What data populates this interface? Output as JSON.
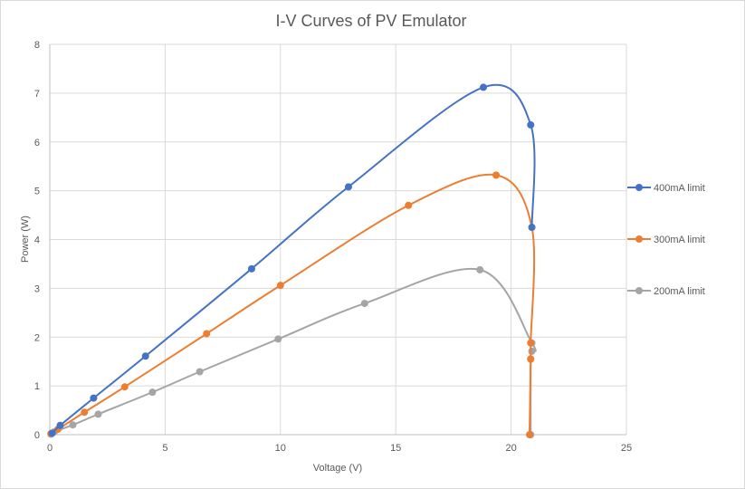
{
  "chart_data": {
    "type": "scatter",
    "title": "I-V Curves of PV Emulator",
    "xlabel": "Voltage (V)",
    "ylabel": "Power (W)",
    "xlim": [
      0,
      25
    ],
    "ylim": [
      0,
      8
    ],
    "xticks": [
      0,
      5,
      10,
      15,
      20,
      25
    ],
    "yticks": [
      0,
      1,
      2,
      3,
      4,
      5,
      6,
      7,
      8
    ],
    "grid": true,
    "legend_position": "right",
    "series": [
      {
        "name": "400mA limit",
        "color": "#4472C4",
        "x": [
          0.1,
          0.45,
          1.9,
          4.15,
          8.75,
          12.95,
          18.8,
          20.85,
          20.9
        ],
        "y": [
          0.03,
          0.19,
          0.75,
          1.61,
          3.4,
          5.08,
          7.12,
          6.35,
          4.25
        ]
      },
      {
        "name": "300mA limit",
        "color": "#ED7D31",
        "x": [
          0.05,
          0.35,
          1.5,
          3.25,
          6.8,
          10.0,
          15.55,
          19.35,
          20.9,
          20.85,
          20.85,
          20.8
        ],
        "y": [
          0.02,
          0.11,
          0.46,
          0.98,
          2.07,
          3.06,
          4.7,
          5.32,
          4.25,
          1.88,
          1.55,
          0.0
        ]
      },
      {
        "name": "200mA limit",
        "color": "#A5A5A5",
        "x": [
          0.05,
          0.2,
          1.0,
          2.1,
          4.45,
          6.5,
          9.9,
          13.65,
          18.65,
          20.9,
          20.9,
          20.85,
          20.85
        ],
        "y": [
          0.01,
          0.06,
          0.2,
          0.42,
          0.87,
          1.29,
          1.96,
          2.69,
          3.38,
          1.88,
          1.71,
          1.55,
          0.0
        ]
      }
    ]
  }
}
